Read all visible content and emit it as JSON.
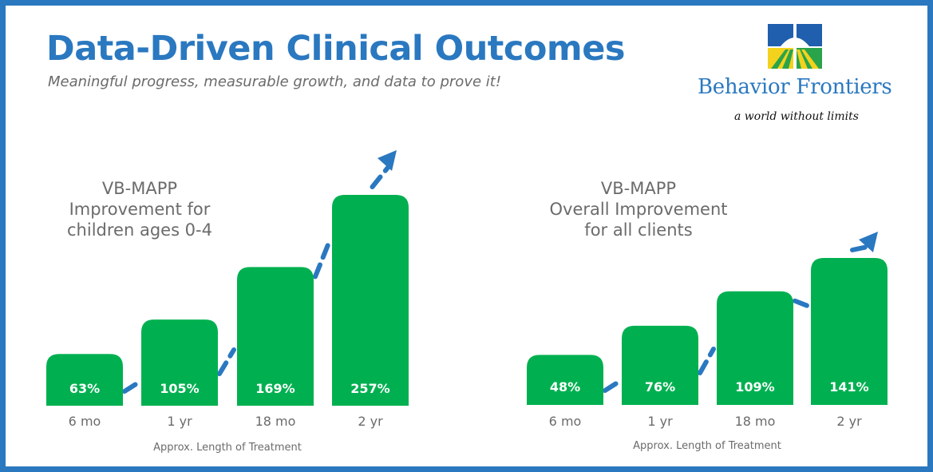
{
  "header": {
    "title": "Data-Driven Clinical Outcomes",
    "subtitle": "Meaningful progress, measurable growth, and data to prove it!"
  },
  "logo": {
    "name": "Behavior Frontiers",
    "tagline": "a world without limits",
    "colors": [
      "#1f5fae",
      "#f3d21d",
      "#2aa44a",
      "#ffffff"
    ]
  },
  "colors": {
    "frame": "#2a78c0",
    "title": "#2a78c0",
    "bar": "#00b050",
    "trend_arrow": "#2a78c0",
    "label_text": "#6b6b6b"
  },
  "chart_data": [
    {
      "type": "bar",
      "title": [
        "VB-MAPP",
        "Improvement for",
        "children ages 0-4"
      ],
      "categories": [
        "6 mo",
        "1 yr",
        "18 mo",
        "2 yr"
      ],
      "values": [
        63,
        105,
        169,
        257
      ],
      "data_labels": [
        "63%",
        "105%",
        "169%",
        "257%"
      ],
      "xlabel": "Approx. Length of Treatment",
      "ylabel": "",
      "ylim": [
        0,
        280
      ],
      "trend_arrow": true,
      "grid": false
    },
    {
      "type": "bar",
      "title": [
        "VB-MAPP",
        "Overall Improvement",
        "for all clients"
      ],
      "categories": [
        "6 mo",
        "1 yr",
        "18 mo",
        "2 yr"
      ],
      "values": [
        48,
        76,
        109,
        141
      ],
      "data_labels": [
        "48%",
        "76%",
        "109%",
        "141%"
      ],
      "xlabel": "Approx. Length of Treatment",
      "ylabel": "",
      "ylim": [
        0,
        280
      ],
      "trend_arrow": true,
      "grid": false
    }
  ]
}
